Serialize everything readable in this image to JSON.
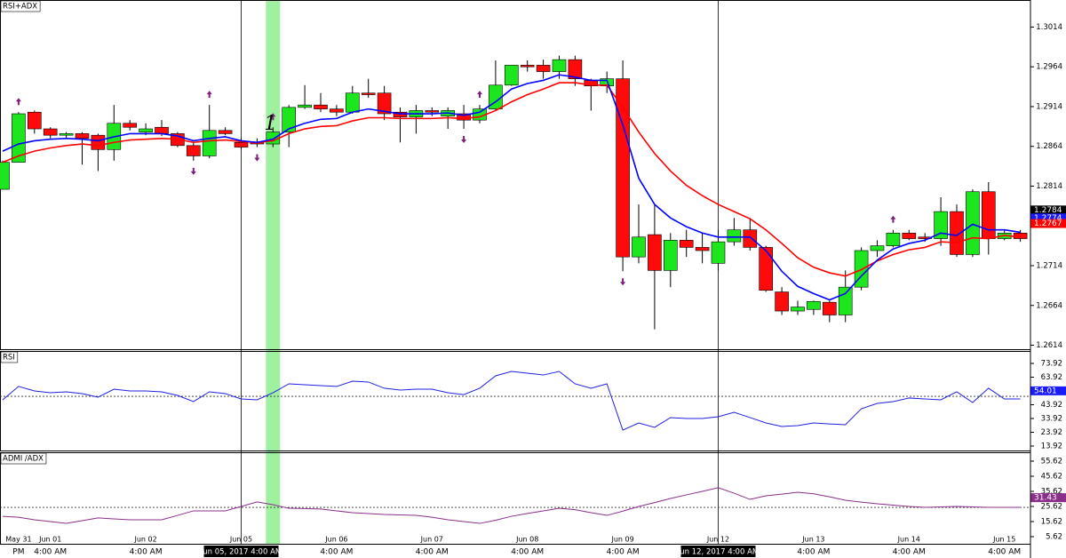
{
  "chart_data": [
    {
      "type": "candlestick",
      "title": "RSI+ADX",
      "open": [
        1.281,
        1.2844,
        1.2907,
        1.2886,
        1.2878,
        1.288,
        1.2878,
        1.286,
        1.2893,
        1.2882,
        1.2888,
        1.288,
        1.2865,
        1.2852,
        1.2884,
        1.2869,
        1.2869,
        1.2867,
        1.2882,
        1.2913,
        1.2916,
        1.2911,
        1.2907,
        1.2931,
        1.2931,
        1.2907,
        1.2901,
        1.2909,
        1.2902,
        1.2905,
        1.2897,
        1.2911,
        1.2941,
        1.2966,
        1.2966,
        1.2958,
        1.2973,
        1.2947,
        1.294,
        1.2949,
        1.2725,
        1.2753,
        1.2708,
        1.2746,
        1.2737,
        1.2717,
        1.2744,
        1.2759,
        1.2737,
        1.2681,
        1.2657,
        1.2659,
        1.2668,
        1.2652,
        1.2687,
        1.2733,
        1.2739,
        1.2755,
        1.275,
        1.2748,
        1.2782,
        1.2728,
        1.2807,
        1.2748,
        1.2755
      ],
      "high": [
        1.2846,
        1.2907,
        1.2909,
        1.2888,
        1.2882,
        1.2882,
        1.288,
        1.2916,
        1.2897,
        1.2893,
        1.2897,
        1.2882,
        1.2869,
        1.2916,
        1.2888,
        1.2874,
        1.2874,
        1.2888,
        1.2916,
        1.2941,
        1.2931,
        1.2916,
        1.294,
        1.2949,
        1.294,
        1.2913,
        1.2916,
        1.2913,
        1.2913,
        1.2916,
        1.2916,
        1.2972,
        1.2966,
        1.2972,
        1.2973,
        1.2978,
        1.2978,
        1.2949,
        1.2958,
        1.2972,
        1.2791,
        1.2791,
        1.2755,
        1.2759,
        1.2755,
        1.2759,
        1.2774,
        1.2774,
        1.2739,
        1.2687,
        1.267,
        1.267,
        1.267,
        1.2708,
        1.2737,
        1.2746,
        1.2759,
        1.2759,
        1.2755,
        1.28,
        1.2791,
        1.281,
        1.2819,
        1.2759,
        1.2759
      ],
      "low": [
        1.281,
        1.2844,
        1.288,
        1.2874,
        1.2874,
        1.2841,
        1.2833,
        1.2846,
        1.2884,
        1.2878,
        1.2877,
        1.2863,
        1.2846,
        1.2849,
        1.2878,
        1.286,
        1.2863,
        1.2863,
        1.2863,
        1.2911,
        1.2907,
        1.2902,
        1.2905,
        1.2925,
        1.2897,
        1.2869,
        1.288,
        1.2902,
        1.2886,
        1.2886,
        1.2893,
        1.2909,
        1.294,
        1.2958,
        1.2949,
        1.2949,
        1.294,
        1.2909,
        1.2931,
        1.2707,
        1.2717,
        1.2634,
        1.2687,
        1.2725,
        1.2717,
        1.2708,
        1.2739,
        1.2733,
        1.2681,
        1.2652,
        1.2652,
        1.2652,
        1.2643,
        1.2643,
        1.2683,
        1.2725,
        1.2737,
        1.2746,
        1.2744,
        1.2739,
        1.2725,
        1.2725,
        1.2728,
        1.2746,
        1.2744
      ],
      "close": [
        1.2844,
        1.2905,
        1.2886,
        1.2878,
        1.288,
        1.2874,
        1.286,
        1.2893,
        1.2888,
        1.2886,
        1.288,
        1.2865,
        1.2852,
        1.2884,
        1.288,
        1.2863,
        1.2867,
        1.2882,
        1.2913,
        1.2916,
        1.2911,
        1.2907,
        1.2931,
        1.2929,
        1.2905,
        1.2901,
        1.2909,
        1.2907,
        1.2909,
        1.2897,
        1.2911,
        1.2941,
        1.2966,
        1.2964,
        1.2958,
        1.2973,
        1.2949,
        1.294,
        1.2949,
        1.2725,
        1.275,
        1.2708,
        1.2746,
        1.2737,
        1.2733,
        1.2744,
        1.2759,
        1.2737,
        1.2683,
        1.2657,
        1.2662,
        1.2669,
        1.2652,
        1.2687,
        1.2733,
        1.2739,
        1.2755,
        1.2748,
        1.2748,
        1.2782,
        1.2728,
        1.2807,
        1.2748,
        1.2755,
        1.2748
      ],
      "up_color": "#1ee61e",
      "down_color": "#ff0a0a",
      "overlays": [
        {
          "color": "#ff0000",
          "values": [
            1.2844,
            1.2852,
            1.2858,
            1.2862,
            1.2865,
            1.2867,
            1.2865,
            1.2869,
            1.2872,
            1.2873,
            1.2874,
            1.2873,
            1.2869,
            1.2871,
            1.2872,
            1.287,
            1.2869,
            1.2871,
            1.288,
            1.2886,
            1.2889,
            1.289,
            1.2896,
            1.29,
            1.29,
            1.2899,
            1.2899,
            1.2899,
            1.29,
            1.2899,
            1.2901,
            1.2909,
            1.292,
            1.2929,
            1.2936,
            1.2944,
            1.2944,
            1.2941,
            1.2941,
            1.2913,
            1.2882,
            1.2855,
            1.2833,
            1.2815,
            1.2802,
            1.2791,
            1.2782,
            1.2773,
            1.2759,
            1.2742,
            1.2724,
            1.2712,
            1.2705,
            1.2701,
            1.2709,
            1.272,
            1.2728,
            1.2734,
            1.2737,
            1.2744,
            1.2743,
            1.2749,
            1.2748,
            1.2752,
            1.275
          ]
        },
        {
          "color": "#0000ff",
          "values": [
            1.2858,
            1.2867,
            1.2871,
            1.2873,
            1.2874,
            1.2873,
            1.2871,
            1.2876,
            1.288,
            1.288,
            1.288,
            1.2877,
            1.2871,
            1.2874,
            1.2876,
            1.2871,
            1.2869,
            1.2873,
            1.2886,
            1.2893,
            1.2898,
            1.2899,
            1.2907,
            1.2911,
            1.2908,
            1.2905,
            1.2905,
            1.2905,
            1.2906,
            1.2903,
            1.2907,
            1.292,
            1.2936,
            1.2943,
            1.2947,
            1.2954,
            1.2951,
            1.2947,
            1.2947,
            1.2891,
            1.2824,
            1.2791,
            1.2774,
            1.2763,
            1.2755,
            1.275,
            1.275,
            1.275,
            1.2733,
            1.2707,
            1.2688,
            1.2679,
            1.2671,
            1.2679,
            1.2701,
            1.2721,
            1.2735,
            1.2742,
            1.2746,
            1.2755,
            1.2752,
            1.2766,
            1.2759,
            1.2759,
            1.2756
          ]
        }
      ],
      "ylim": [
        1.2609,
        1.3048
      ],
      "yticks": [
        1.3014,
        1.2964,
        1.2914,
        1.2864,
        1.2814,
        1.2714,
        1.2664,
        1.2614
      ],
      "price_tags": [
        {
          "value": 1.2784,
          "color": "#000000"
        },
        {
          "value": 1.2774,
          "color": "#1a1aff"
        },
        {
          "value": 1.2767,
          "color": "#ff0000"
        }
      ],
      "xticks": [
        {
          "value": 1,
          "label": "May 31"
        },
        {
          "value": 3,
          "label": "Jun 01"
        },
        {
          "value": 9,
          "label": "Jun 02"
        },
        {
          "value": 15,
          "label": "Jun 05"
        },
        {
          "value": 21,
          "label": "Jun 06"
        },
        {
          "value": 27,
          "label": "Jun 07"
        },
        {
          "value": 33,
          "label": "Jun 08"
        },
        {
          "value": 39,
          "label": "Jun 09"
        },
        {
          "value": 45,
          "label": "Jun 12"
        },
        {
          "value": 51,
          "label": "Jun 13"
        },
        {
          "value": 57,
          "label": "Jun 14"
        },
        {
          "value": 63,
          "label": "Jun 15"
        }
      ],
      "time_labels": [
        {
          "value": 1,
          "label": "PM"
        },
        {
          "value": 3,
          "label": "4:00 AM"
        },
        {
          "value": 9,
          "label": "4:00 AM"
        },
        {
          "value": 21,
          "label": "4:00 AM"
        },
        {
          "value": 27,
          "label": "4:00 AM"
        },
        {
          "value": 33,
          "label": "4:00 AM"
        },
        {
          "value": 39,
          "label": "4:00 AM"
        },
        {
          "value": 51,
          "label": "4:00 AM"
        },
        {
          "value": 57,
          "label": "4:00 AM"
        },
        {
          "value": 63,
          "label": "4:00 AM"
        }
      ],
      "crosshairs": [
        {
          "value": 15,
          "label": "Jun 05, 2017 4:00 AM"
        },
        {
          "value": 45,
          "label": "Jun 12, 2017 4:00 AM"
        }
      ],
      "highlight": 17,
      "highlight_color": "#9ff09f",
      "annotation": "1",
      "signals_up": [
        1,
        13,
        17,
        30,
        56
      ],
      "signals_down": [
        12,
        16,
        29,
        39
      ],
      "signal_color": "#7a1f7a"
    },
    {
      "type": "line",
      "title": "RSI",
      "color": "#2020e0",
      "values": [
        47.5,
        57.2,
        53.9,
        52.6,
        53.3,
        52.0,
        49.4,
        55.2,
        53.9,
        53.9,
        53.3,
        50.7,
        46.2,
        53.3,
        52.0,
        48.1,
        47.5,
        52.6,
        59.1,
        58.4,
        57.8,
        57.2,
        61.0,
        60.4,
        55.9,
        54.6,
        55.2,
        55.2,
        52.6,
        51.3,
        55.9,
        64.9,
        68.1,
        66.8,
        65.5,
        68.1,
        59.1,
        55.9,
        59.1,
        25.5,
        30.7,
        27.5,
        34.6,
        33.9,
        33.9,
        35.2,
        38.4,
        34.6,
        30.7,
        28.1,
        28.8,
        30.7,
        30.0,
        29.4,
        41.0,
        44.9,
        46.2,
        48.8,
        48.1,
        47.5,
        53.3,
        45.5,
        55.9,
        48.1,
        48.1
      ],
      "ylim": [
        10.7,
        82.95
      ],
      "yticks": [
        73.92,
        63.92,
        43.92,
        33.92,
        23.92,
        13.92
      ],
      "ref_line": 50,
      "tag": {
        "value": 54.01,
        "color": "#1a1aff"
      }
    },
    {
      "type": "line",
      "title": "ADMI /ADX",
      "color": "#8b2f8b",
      "values": [
        19.1,
        18.5,
        16.8,
        15.6,
        14.4,
        16.2,
        18.0,
        17.4,
        16.8,
        16.8,
        16.8,
        19.7,
        22.7,
        22.7,
        22.7,
        25.6,
        28.6,
        26.8,
        24.4,
        24.2,
        23.9,
        22.7,
        21.5,
        20.9,
        20.3,
        20.0,
        19.7,
        18.5,
        16.8,
        15.6,
        14.4,
        16.5,
        19.1,
        21.0,
        22.7,
        24.4,
        23.5,
        21.5,
        19.7,
        22.5,
        25.6,
        28.2,
        30.9,
        33.3,
        35.6,
        38.0,
        34.4,
        30.3,
        32.7,
        33.8,
        35.0,
        34.0,
        32.0,
        29.7,
        28.5,
        27.4,
        26.5,
        25.6,
        25.0,
        25.3,
        25.6,
        25.3,
        25.0,
        25.0,
        25.0
      ],
      "ylim": [
        0.9,
        61.5
      ],
      "yticks": [
        55.62,
        45.62,
        35.62,
        25.62,
        15.62,
        5.62
      ],
      "ref_line": 25,
      "tag": {
        "value": 31.43,
        "color": "#8b2f8b"
      }
    }
  ]
}
